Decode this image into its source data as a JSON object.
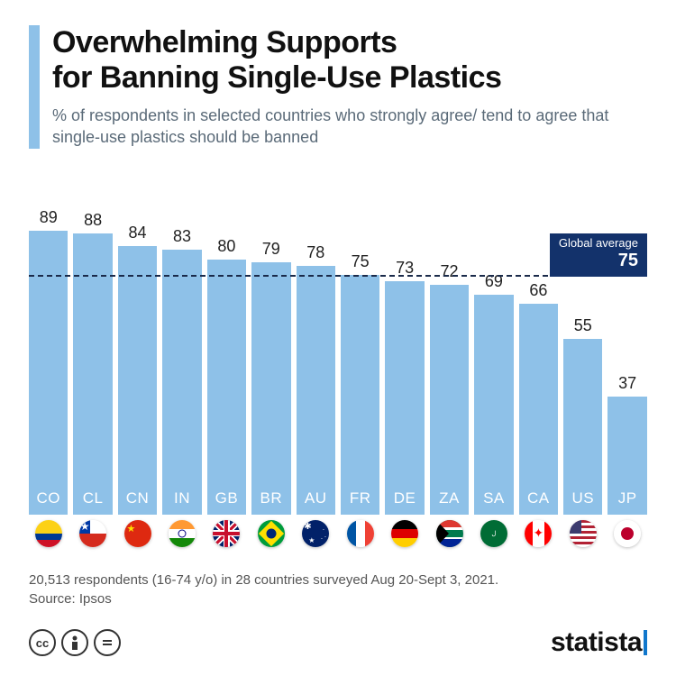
{
  "title_line1": "Overwhelming Supports",
  "title_line2": "for Banning Single-Use Plastics",
  "subtitle": "% of respondents in selected countries who strongly agree/ tend to agree that single-use plastics should be banned",
  "chart": {
    "type": "bar",
    "ylim": [
      0,
      100
    ],
    "bar_color": "#8ec1e8",
    "value_label_color": "#222222",
    "code_label_color": "#ffffff",
    "value_fontsize": 18,
    "code_fontsize": 17,
    "background_color": "#ffffff",
    "global_average": {
      "label": "Global average",
      "value": 75,
      "line_color": "#1a2a4a",
      "box_bg": "#13326b",
      "box_text": "#ffffff"
    },
    "bars": [
      {
        "code": "CO",
        "value": 89,
        "flag": "co"
      },
      {
        "code": "CL",
        "value": 88,
        "flag": "cl"
      },
      {
        "code": "CN",
        "value": 84,
        "flag": "cn"
      },
      {
        "code": "IN",
        "value": 83,
        "flag": "in"
      },
      {
        "code": "GB",
        "value": 80,
        "flag": "gb"
      },
      {
        "code": "BR",
        "value": 79,
        "flag": "br"
      },
      {
        "code": "AU",
        "value": 78,
        "flag": "au"
      },
      {
        "code": "FR",
        "value": 75,
        "flag": "fr"
      },
      {
        "code": "DE",
        "value": 73,
        "flag": "de"
      },
      {
        "code": "ZA",
        "value": 72,
        "flag": "za"
      },
      {
        "code": "SA",
        "value": 69,
        "flag": "sa"
      },
      {
        "code": "CA",
        "value": 66,
        "flag": "ca"
      },
      {
        "code": "US",
        "value": 55,
        "flag": "us"
      },
      {
        "code": "JP",
        "value": 37,
        "flag": "jp"
      }
    ]
  },
  "footnote_line1": "20,513 respondents (16-74 y/o) in 28 countries surveyed Aug 20-Sept 3, 2021.",
  "footnote_line2": "Source: Ipsos",
  "brand": "statista",
  "cc_icons": [
    "cc",
    "by",
    "nd"
  ]
}
